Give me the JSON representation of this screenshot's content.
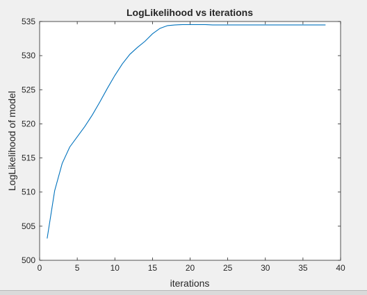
{
  "chart_data": {
    "type": "line",
    "title": "LogLikelihood vs iterations",
    "xlabel": "iterations",
    "ylabel": "LogLikelihood of model",
    "xlim": [
      0,
      40
    ],
    "ylim": [
      500,
      535
    ],
    "xticks": [
      0,
      5,
      10,
      15,
      20,
      25,
      30,
      35,
      40
    ],
    "yticks": [
      500,
      505,
      510,
      515,
      520,
      525,
      530,
      535
    ],
    "grid": false,
    "line_color": "#0072bd",
    "series": [
      {
        "x": [
          1,
          2,
          3,
          4,
          5,
          6,
          7,
          8,
          9,
          10,
          11,
          12,
          13,
          14,
          15,
          16,
          17,
          18,
          19,
          20,
          21,
          22,
          23,
          24,
          25,
          26,
          27,
          28,
          29,
          30,
          31,
          32,
          33,
          34,
          35,
          36,
          37,
          38
        ],
        "values": [
          503.2,
          510.2,
          514.2,
          516.6,
          518.1,
          519.6,
          521.3,
          523.2,
          525.2,
          527.1,
          528.8,
          530.2,
          531.2,
          532.1,
          533.2,
          534.0,
          534.4,
          534.5,
          534.55,
          534.55,
          534.55,
          534.55,
          534.5,
          534.5,
          534.5,
          534.5,
          534.5,
          534.5,
          534.5,
          534.5,
          534.5,
          534.5,
          534.5,
          534.5,
          534.5,
          534.5,
          534.5,
          534.5
        ]
      }
    ]
  }
}
